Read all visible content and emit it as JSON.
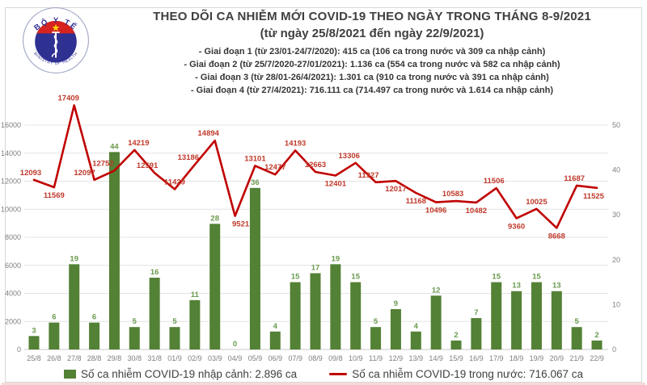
{
  "header": {
    "title_line1": "THEO DÕI CA NHIỄM MỚI COVID-19 THEO NGÀY TRONG THÁNG 8-9/2021",
    "title_line2": "(từ ngày 25/8/2021 đến ngày 22/9/2021)",
    "phases": [
      "- Giai đoạn 1 (từ 23/01-24/7/2020): 415 ca (106 ca trong nước và 309 ca nhập cảnh)",
      "- Giai đoạn 2 (từ 25/7/2020-27/01/2021): 1.136 ca (554 ca trong nước và 582 ca nhập cảnh)",
      "- Giai đoạn 3 (từ 28/01-26/4/2021): 1.301 ca (910 ca trong nước và 391 ca nhập cảnh)",
      "- Giai đoạn 4 (từ 27/4/2021): 716.111 ca (714.497 ca trong nước và 1.614 ca nhập cảnh)"
    ]
  },
  "logo": {
    "top_text": "BỘ Y TẾ",
    "bottom_text": "MINISTRY OF HEALTH"
  },
  "legend": {
    "bar_label": "Số ca nhiễm COVID-19 nhập cảnh: 2.896 ca",
    "line_label": "Số ca nhiễm COVID-19 trong nước: 716.067 ca"
  },
  "colors": {
    "bar": "#538135",
    "bar_label": "#6a9a4e",
    "line": "#c00000",
    "line_label": "#c0392b",
    "grid": "#e4e4e4",
    "baseline": "#c9c9c9",
    "axis_text": "#7f7f7f",
    "title_text": "#3f3f3f"
  },
  "chart_data": {
    "type": "bar",
    "subtype": "bar+line dual axis",
    "title": "THEO DÕI CA NHIỄM MỚI COVID-19 THEO NGÀY TRONG THÁNG 8-9/2021 (từ ngày 25/8/2021 đến ngày 22/9/2021)",
    "categories": [
      "25/8",
      "26/8",
      "27/8",
      "28/8",
      "29/8",
      "30/8",
      "31/8",
      "01/9",
      "02/9",
      "03/9",
      "04/9",
      "05/9",
      "06/9",
      "07/9",
      "08/9",
      "09/8",
      "10/9",
      "11/9",
      "12/9",
      "13/9",
      "14/9",
      "15/9",
      "16/9",
      "17/9",
      "18/9",
      "19/9",
      "20/9",
      "21/9",
      "22/9"
    ],
    "series": [
      {
        "name": "Số ca nhiễm COVID-19 nhập cảnh",
        "type": "bar",
        "axis": "right",
        "values": [
          3,
          6,
          19,
          6,
          44,
          5,
          16,
          5,
          11,
          28,
          0,
          36,
          4,
          15,
          17,
          19,
          15,
          5,
          9,
          4,
          12,
          2,
          7,
          15,
          13,
          15,
          13,
          5,
          2
        ]
      },
      {
        "name": "Số ca nhiễm COVID-19 trong nước",
        "type": "line",
        "axis": "left",
        "values": [
          12093,
          11569,
          17409,
          12097,
          12752,
          14219,
          12591,
          11429,
          13186,
          14894,
          9521,
          13101,
          12477,
          14193,
          12663,
          12401,
          13306,
          11927,
          12017,
          11168,
          10496,
          10583,
          10482,
          11506,
          9360,
          10025,
          8668,
          11687,
          11525
        ]
      }
    ],
    "left_axis": {
      "min": 0,
      "max": 16000,
      "step": 2000
    },
    "right_axis": {
      "min": 0,
      "max": 50,
      "step": 10
    },
    "grid": "horizontal",
    "legend_position": "bottom",
    "line_label_below_indices": [
      1,
      10,
      15,
      18,
      19,
      20,
      22,
      24,
      26,
      28
    ],
    "line_label_dx": {
      "0": -4,
      "2": -7,
      "3": -12,
      "4": -14,
      "5": 5,
      "6": -9,
      "8": -8,
      "9": -8,
      "10": 7,
      "16": -8,
      "17": -9,
      "21": -4,
      "23": -3,
      "27": -3,
      "28": -4
    }
  }
}
